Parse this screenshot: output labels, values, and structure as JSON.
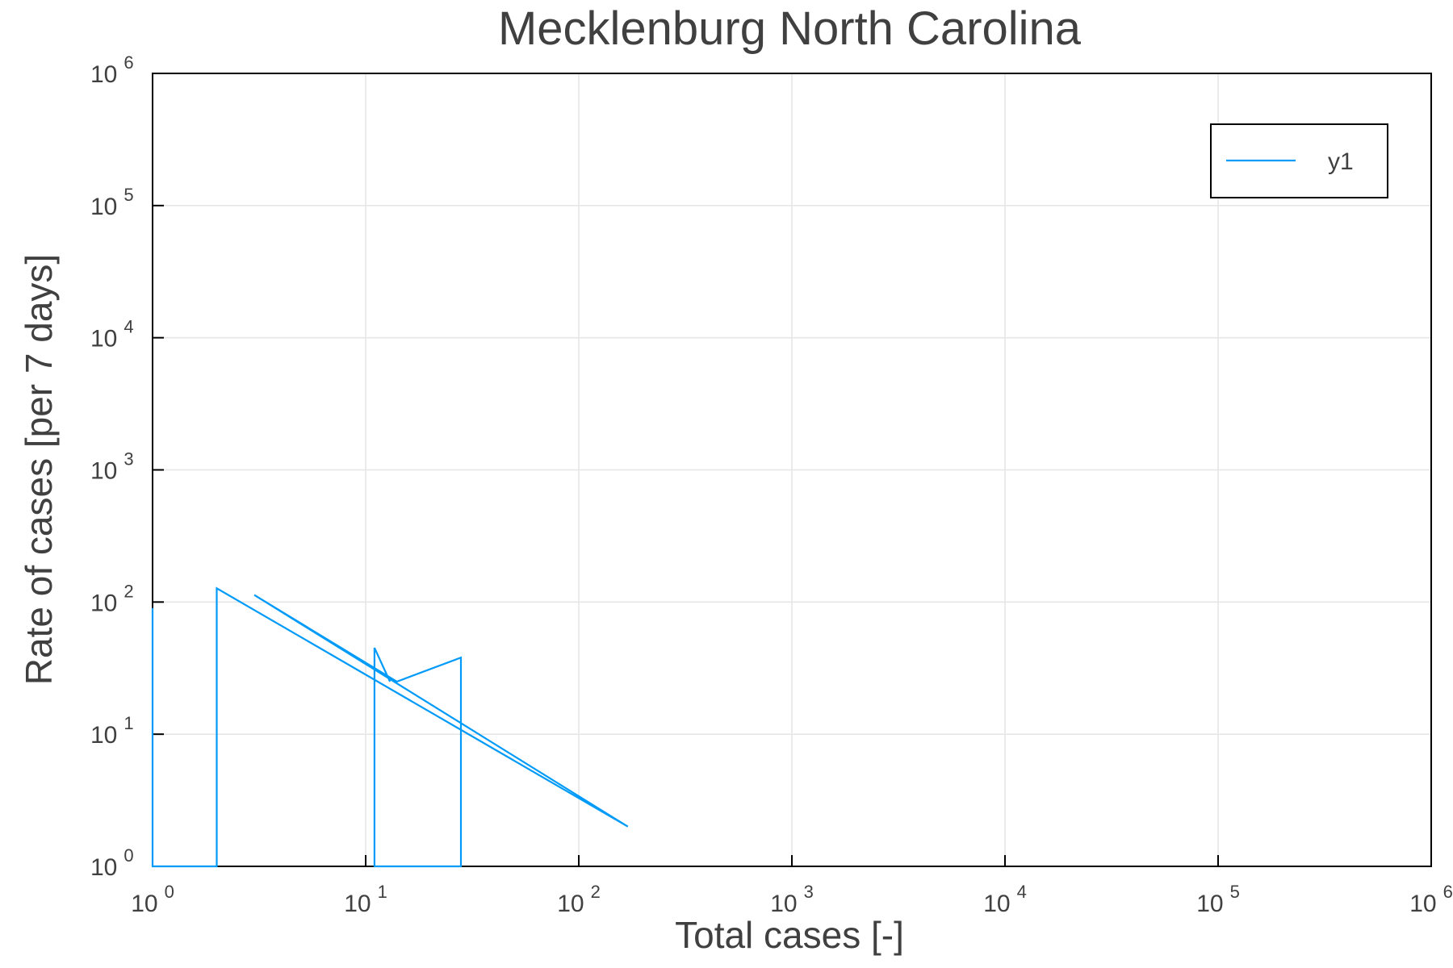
{
  "chart_data": {
    "type": "line",
    "title": "Mecklenburg North Carolina",
    "xlabel": "Total cases [-]",
    "ylabel": "Rate of cases [per 7 days]",
    "xscale": "log10",
    "yscale": "log10",
    "xlim": [
      1,
      1000000
    ],
    "ylim": [
      1,
      1000000
    ],
    "grid": true,
    "x_ticks": [
      {
        "base": "10",
        "exp": "0",
        "value": 1
      },
      {
        "base": "10",
        "exp": "1",
        "value": 10
      },
      {
        "base": "10",
        "exp": "2",
        "value": 100
      },
      {
        "base": "10",
        "exp": "3",
        "value": 1000
      },
      {
        "base": "10",
        "exp": "4",
        "value": 10000
      },
      {
        "base": "10",
        "exp": "5",
        "value": 100000
      },
      {
        "base": "10",
        "exp": "6",
        "value": 1000000
      }
    ],
    "y_ticks": [
      {
        "base": "10",
        "exp": "0",
        "value": 1
      },
      {
        "base": "10",
        "exp": "1",
        "value": 10
      },
      {
        "base": "10",
        "exp": "2",
        "value": 100
      },
      {
        "base": "10",
        "exp": "3",
        "value": 1000
      },
      {
        "base": "10",
        "exp": "4",
        "value": 10000
      },
      {
        "base": "10",
        "exp": "5",
        "value": 100000
      },
      {
        "base": "10",
        "exp": "6",
        "value": 1000000
      }
    ],
    "legend": {
      "position": "top-right",
      "entries": [
        "y1"
      ]
    },
    "series": [
      {
        "name": "y1",
        "color": "#009AF9",
        "points": [
          {
            "x": 1,
            "y": 1
          },
          {
            "x": 1,
            "y": 90
          },
          {
            "x": 1,
            "y": 1
          },
          {
            "x": 2,
            "y": 1
          },
          {
            "x": 2,
            "y": 127
          },
          {
            "x": 170,
            "y": 2
          },
          {
            "x": 3,
            "y": 113
          },
          {
            "x": 14,
            "y": 25
          },
          {
            "x": 28,
            "y": 38
          },
          {
            "x": 28,
            "y": 1
          },
          {
            "x": 11,
            "y": 1
          },
          {
            "x": 11,
            "y": 45
          },
          {
            "x": 13,
            "y": 25
          }
        ]
      }
    ]
  }
}
